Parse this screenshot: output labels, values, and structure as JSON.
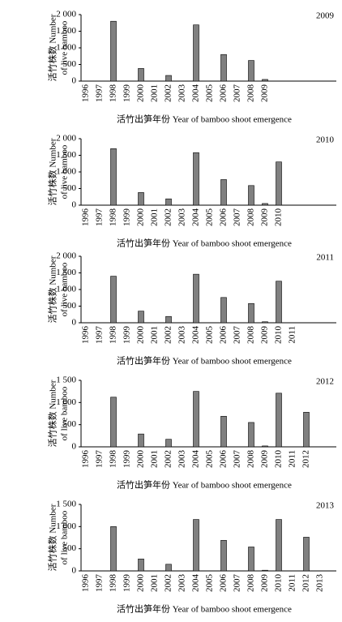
{
  "chart_data": [
    {
      "type": "bar",
      "title": "2009",
      "y_label": [
        "活竹株数 Number",
        "of live bamboo"
      ],
      "x_label": "活竹出笋年份 Year of bamboo shoot emergence",
      "categories": [
        "1996",
        "1997",
        "1998",
        "1999",
        "2000",
        "2001",
        "2002",
        "2003",
        "2004",
        "2005",
        "2006",
        "2007",
        "2008",
        "2009",
        null,
        null,
        null,
        null
      ],
      "values": [
        0,
        0,
        1800,
        0,
        380,
        0,
        170,
        0,
        1690,
        0,
        800,
        0,
        620,
        50,
        0,
        0,
        0,
        0
      ],
      "color": "#808080",
      "ylim": [
        0,
        2000
      ],
      "yticks": [
        0,
        500,
        {
          "value": 1000,
          "label": "1 000"
        },
        {
          "value": 1500,
          "label": "1 500"
        },
        {
          "value": 2000,
          "label": "2 000"
        }
      ]
    },
    {
      "type": "bar",
      "title": "2010",
      "y_label": [
        "活竹株数 Number",
        "of live bamboo"
      ],
      "x_label": "活竹出笋年份 Year of bamboo shoot emergence",
      "categories": [
        "1996",
        "1997",
        "1998",
        "1999",
        "2000",
        "2001",
        "2002",
        "2003",
        "2004",
        "2005",
        "2006",
        "2007",
        "2008",
        "2009",
        "2010",
        null,
        null,
        null
      ],
      "values": [
        0,
        0,
        1700,
        0,
        380,
        0,
        190,
        0,
        1580,
        0,
        770,
        0,
        590,
        50,
        1300,
        0,
        0,
        0
      ],
      "color": "#808080",
      "ylim": [
        0,
        2000
      ],
      "yticks": [
        0,
        500,
        {
          "value": 1000,
          "label": "1 000"
        },
        {
          "value": 1500,
          "label": "1 500"
        },
        {
          "value": 2000,
          "label": "2 000"
        }
      ]
    },
    {
      "type": "bar",
      "title": "2011",
      "y_label": [
        "活竹株数 Number",
        "of live bamboo"
      ],
      "x_label": "活竹出笋年份 Year of bamboo shoot emergence",
      "categories": [
        "1996",
        "1997",
        "1998",
        "1999",
        "2000",
        "2001",
        "2002",
        "2003",
        "2004",
        "2005",
        "2006",
        "2007",
        "2008",
        "2009",
        "2010",
        "2011",
        null,
        null
      ],
      "values": [
        0,
        0,
        1400,
        0,
        350,
        0,
        190,
        0,
        1460,
        0,
        760,
        0,
        580,
        30,
        1250,
        0,
        0,
        0
      ],
      "color": "#808080",
      "ylim": [
        0,
        2000
      ],
      "yticks": [
        0,
        500,
        {
          "value": 1000,
          "label": "1 000"
        },
        {
          "value": 1500,
          "label": "1 500"
        },
        {
          "value": 2000,
          "label": "2 000"
        }
      ]
    },
    {
      "type": "bar",
      "title": "2012",
      "y_label": [
        "活竹株数 Number",
        "of live bamboo"
      ],
      "x_label": "活竹出笋年份 Year of bamboo shoot emergence",
      "categories": [
        "1996",
        "1997",
        "1998",
        "1999",
        "2000",
        "2001",
        "2002",
        "2003",
        "2004",
        "2005",
        "2006",
        "2007",
        "2008",
        "2009",
        "2010",
        "2011",
        "2012",
        null
      ],
      "values": [
        0,
        0,
        1120,
        0,
        290,
        0,
        170,
        0,
        1250,
        0,
        690,
        0,
        550,
        20,
        1210,
        0,
        780,
        0
      ],
      "color": "#808080",
      "ylim": [
        0,
        1500
      ],
      "yticks": [
        0,
        500,
        {
          "value": 1000,
          "label": "1 000"
        },
        {
          "value": 1500,
          "label": "1 500"
        }
      ]
    },
    {
      "type": "bar",
      "title": "2013",
      "y_label": [
        "活竹株数 Number",
        "of live bamboo"
      ],
      "x_label": "活竹出笋年份 Year of bamboo shoot emergence",
      "categories": [
        "1996",
        "1997",
        "1998",
        "1999",
        "2000",
        "2001",
        "2002",
        "2003",
        "2004",
        "2005",
        "2006",
        "2007",
        "2008",
        "2009",
        "2010",
        "2011",
        "2012",
        "2013"
      ],
      "values": [
        0,
        0,
        1000,
        0,
        270,
        0,
        150,
        0,
        1160,
        0,
        690,
        0,
        540,
        15,
        1160,
        0,
        760,
        0
      ],
      "color": "#808080",
      "ylim": [
        0,
        1500
      ],
      "yticks": [
        0,
        500,
        {
          "value": 1000,
          "label": "1 000"
        },
        {
          "value": 1500,
          "label": "1 500"
        }
      ]
    }
  ]
}
